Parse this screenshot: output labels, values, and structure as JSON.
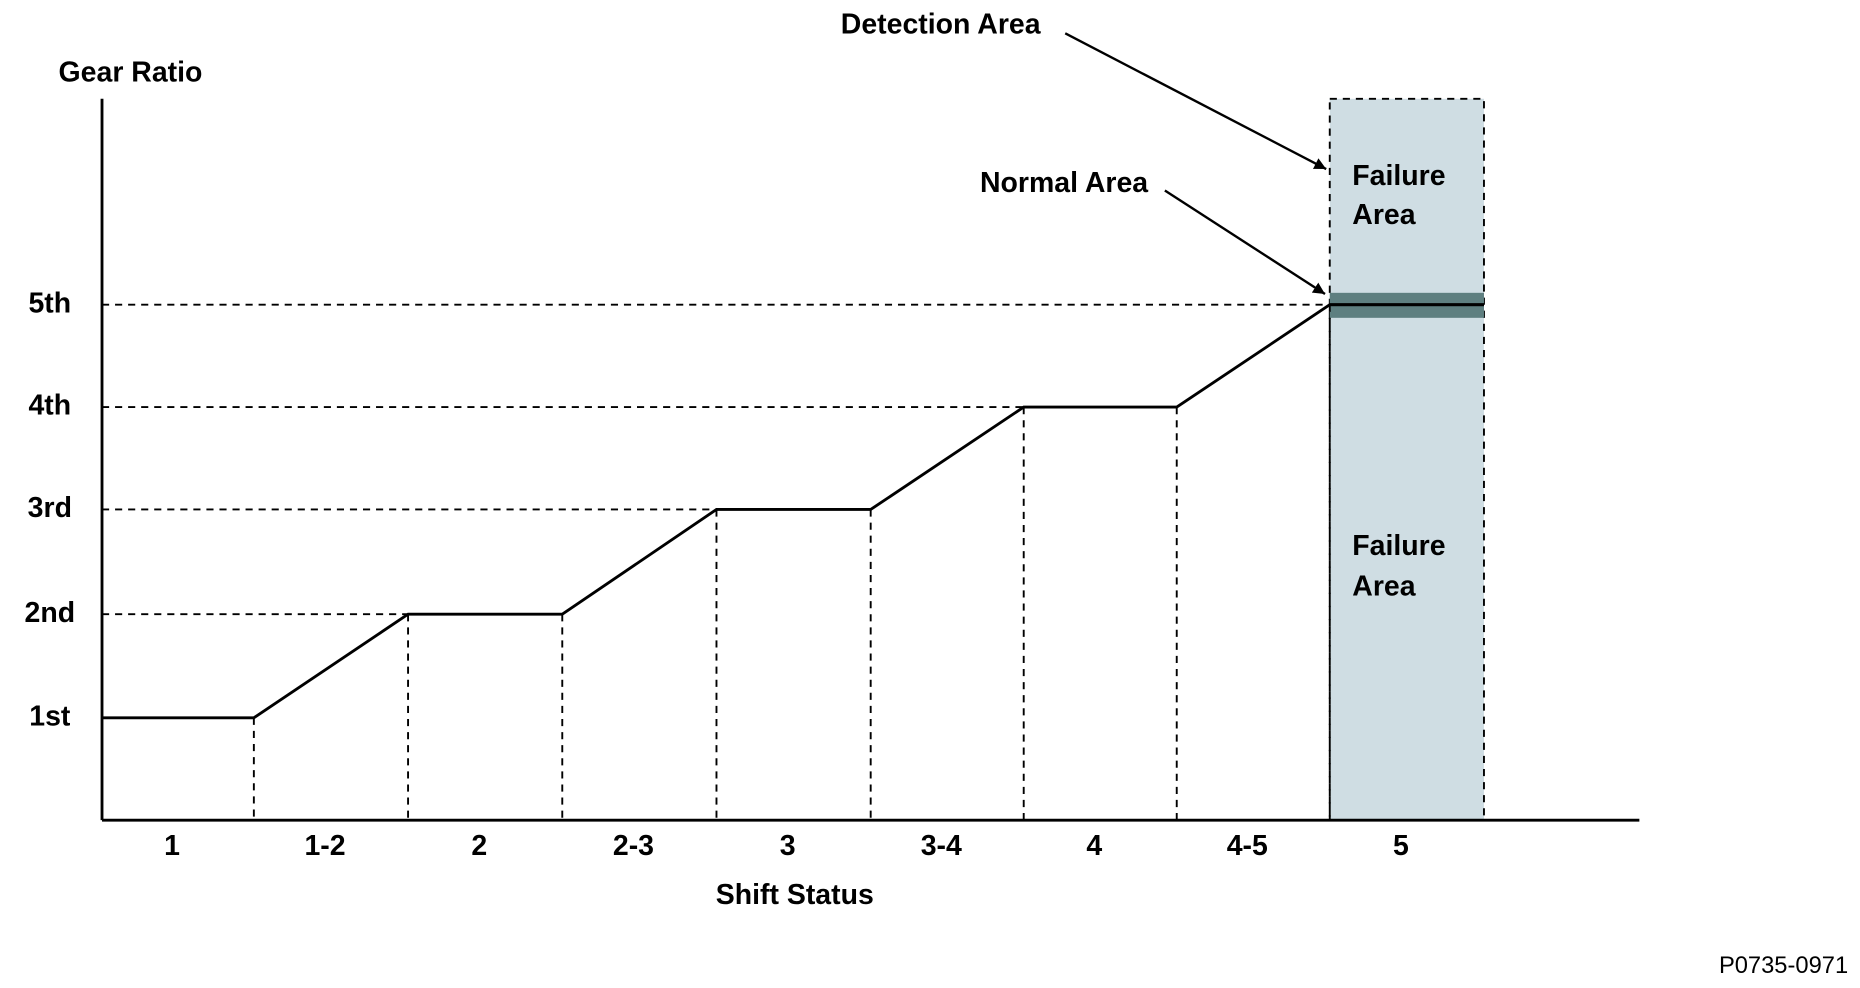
{
  "y_axis_title": "Gear Ratio",
  "y_labels": [
    "1st",
    "2nd",
    "3rd",
    "4th",
    "5th"
  ],
  "x_labels": [
    "1",
    "1-2",
    "2",
    "2-3",
    "3",
    "3-4",
    "4",
    "4-5",
    "5"
  ],
  "x_axis_title": "Shift Status",
  "annotations": {
    "detection_area": "Detection Area",
    "normal_area": "Normal Area"
  },
  "failure_area_upper": [
    "Failure",
    "Area"
  ],
  "failure_area_lower": [
    "Failure",
    "Area"
  ],
  "figure_id": "P0735-0971"
}
